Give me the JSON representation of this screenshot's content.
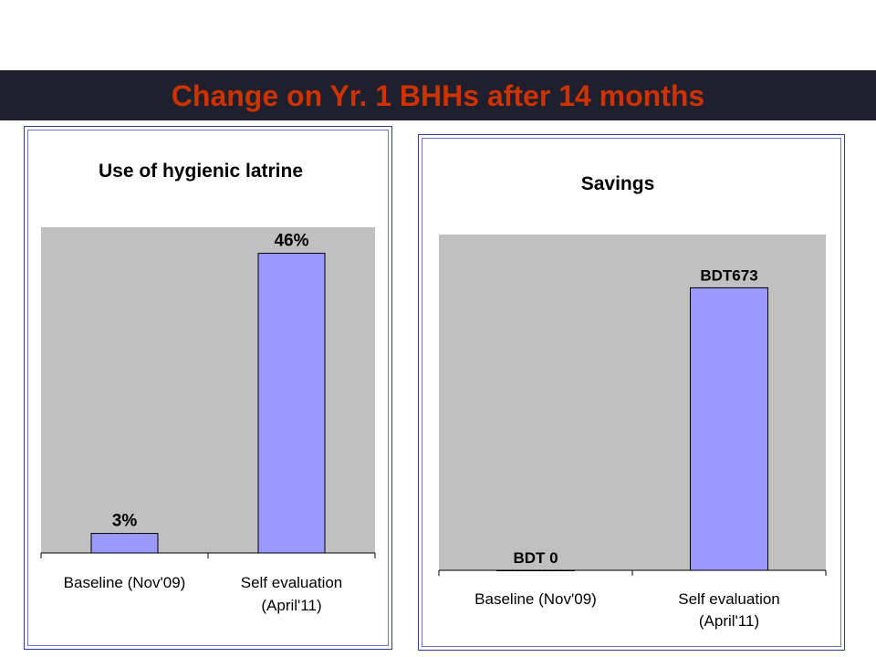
{
  "slide": {
    "title": "Change on Yr. 1 BHHs after 14 months"
  },
  "colors": {
    "title_text": "#cc3300",
    "title_band": "#1f1f2e",
    "plot_area": "#c0c0c0",
    "bar_fill": "#9999ff",
    "panel_border": "#2e3f95"
  },
  "chart_data": [
    {
      "type": "bar",
      "title": "Use of hygienic latrine",
      "categories": [
        [
          "Baseline (Nov'09)"
        ],
        [
          "Self evaluation",
          "(April'11)"
        ]
      ],
      "values": [
        3,
        46
      ],
      "data_labels": [
        "3%",
        "46%"
      ],
      "unit": "%",
      "ylim": [
        0,
        50
      ],
      "grid": false,
      "legend": "none"
    },
    {
      "type": "bar",
      "title": "Savings",
      "categories": [
        [
          "Baseline (Nov'09)"
        ],
        [
          "Self evaluation",
          "(April'11)"
        ]
      ],
      "values": [
        0,
        673
      ],
      "data_labels": [
        "BDT 0",
        "BDT673"
      ],
      "unit": "BDT",
      "ylim": [
        0,
        800
      ],
      "grid": false,
      "legend": "none"
    }
  ]
}
